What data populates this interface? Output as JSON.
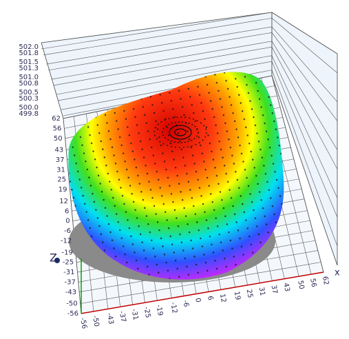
{
  "chart_data": {
    "type": "surface3d",
    "x_label": "x",
    "z_label": "Z",
    "xlim": [
      -56,
      62
    ],
    "ylim": [
      -56,
      62
    ],
    "zlim": [
      499.8,
      502
    ],
    "xticks": [
      -56,
      -50,
      -43,
      -37,
      -31,
      -25,
      -19,
      -12,
      -6,
      0,
      6,
      12,
      19,
      25,
      31,
      37,
      43,
      50,
      56,
      62
    ],
    "yticks": [
      -56,
      -50,
      -43,
      -37,
      -31,
      -25,
      -19,
      -12,
      -6,
      0,
      6,
      12,
      19,
      25,
      31,
      37,
      43,
      50,
      56,
      62
    ],
    "zticks": [
      {
        "value": 499.8,
        "label": "499.8"
      },
      {
        "value": 500,
        "label": "500.0"
      },
      500.3,
      500.5,
      500.8,
      {
        "value": 501,
        "label": "501.0"
      },
      501.3,
      501.5,
      501.8,
      {
        "value": 502,
        "label": "502.0"
      }
    ],
    "grid": true
  }
}
